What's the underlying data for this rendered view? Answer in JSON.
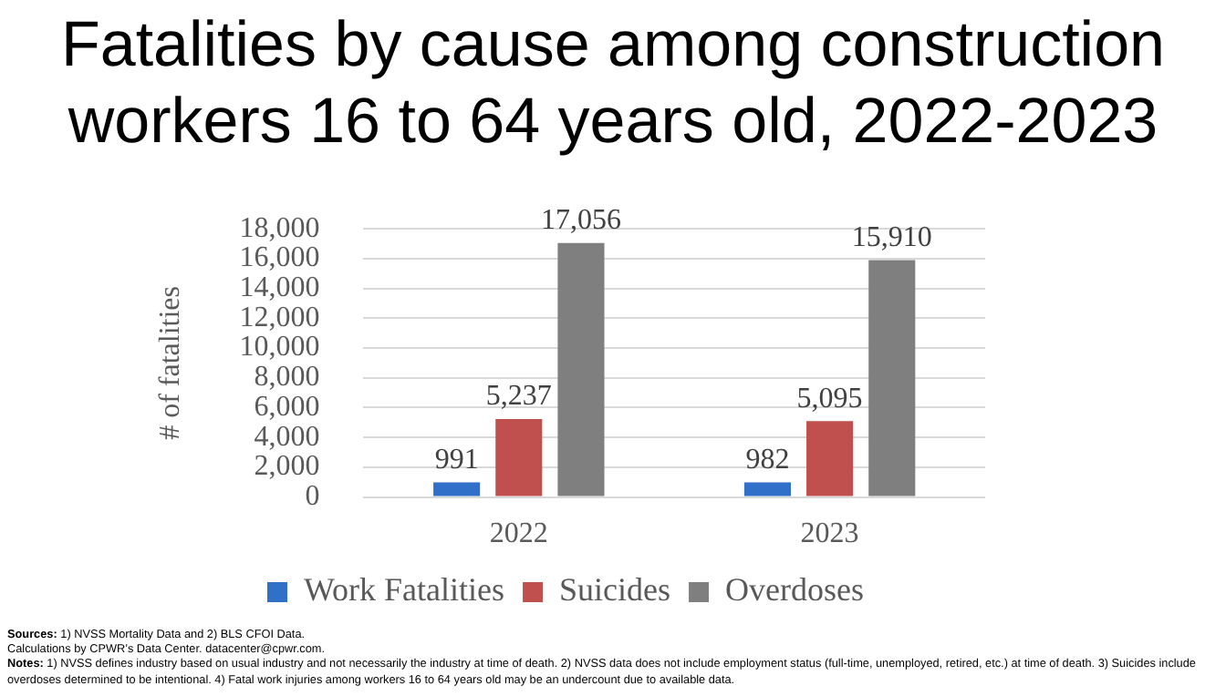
{
  "chart_data": {
    "type": "bar",
    "title": "Fatalities by cause among construction workers 16 to 64 years old, 2022-2023",
    "ylabel": "# of fatalities",
    "categories": [
      "2022",
      "2023"
    ],
    "series": [
      {
        "name": "Work Fatalities",
        "color": "#3070c8",
        "values": [
          991,
          982
        ],
        "value_labels": [
          "991",
          "982"
        ]
      },
      {
        "name": "Suicides",
        "color": "#c0504d",
        "values": [
          5237,
          5095
        ],
        "value_labels": [
          "5,237",
          "5,095"
        ]
      },
      {
        "name": "Overdoses",
        "color": "#7f7f7f",
        "values": [
          17056,
          15910
        ],
        "value_labels": [
          "17,056",
          "15,910"
        ]
      }
    ],
    "ylim": [
      0,
      18000
    ],
    "yticks": [
      {
        "value": 0,
        "label": "0"
      },
      {
        "value": 2000,
        "label": "2,000"
      },
      {
        "value": 4000,
        "label": "4,000"
      },
      {
        "value": 6000,
        "label": "6,000"
      },
      {
        "value": 8000,
        "label": "8,000"
      },
      {
        "value": 10000,
        "label": "10,000"
      },
      {
        "value": 12000,
        "label": "12,000"
      },
      {
        "value": 14000,
        "label": "14,000"
      },
      {
        "value": 16000,
        "label": "16,000"
      },
      {
        "value": 18000,
        "label": "18,000"
      }
    ],
    "grid": "y",
    "legend": "bottom",
    "annotations": [
      "Sources: 1) NVSS Mortality Data and 2) BLS CFOI Data.",
      "Calculations by CPWR’s Data Center. datacenter@cpwr.com.",
      "Notes: 1) NVSS defines industry based on usual industry and not necessarily the industry at time of death. 2) NVSS data does not include employment status (full-time, unemployed, retired, etc.) at time of death.  3) Suicides include overdoses determined to be intentional. 4) Fatal work injuries among workers 16 to 64 years old may be an undercount due to available data."
    ]
  }
}
